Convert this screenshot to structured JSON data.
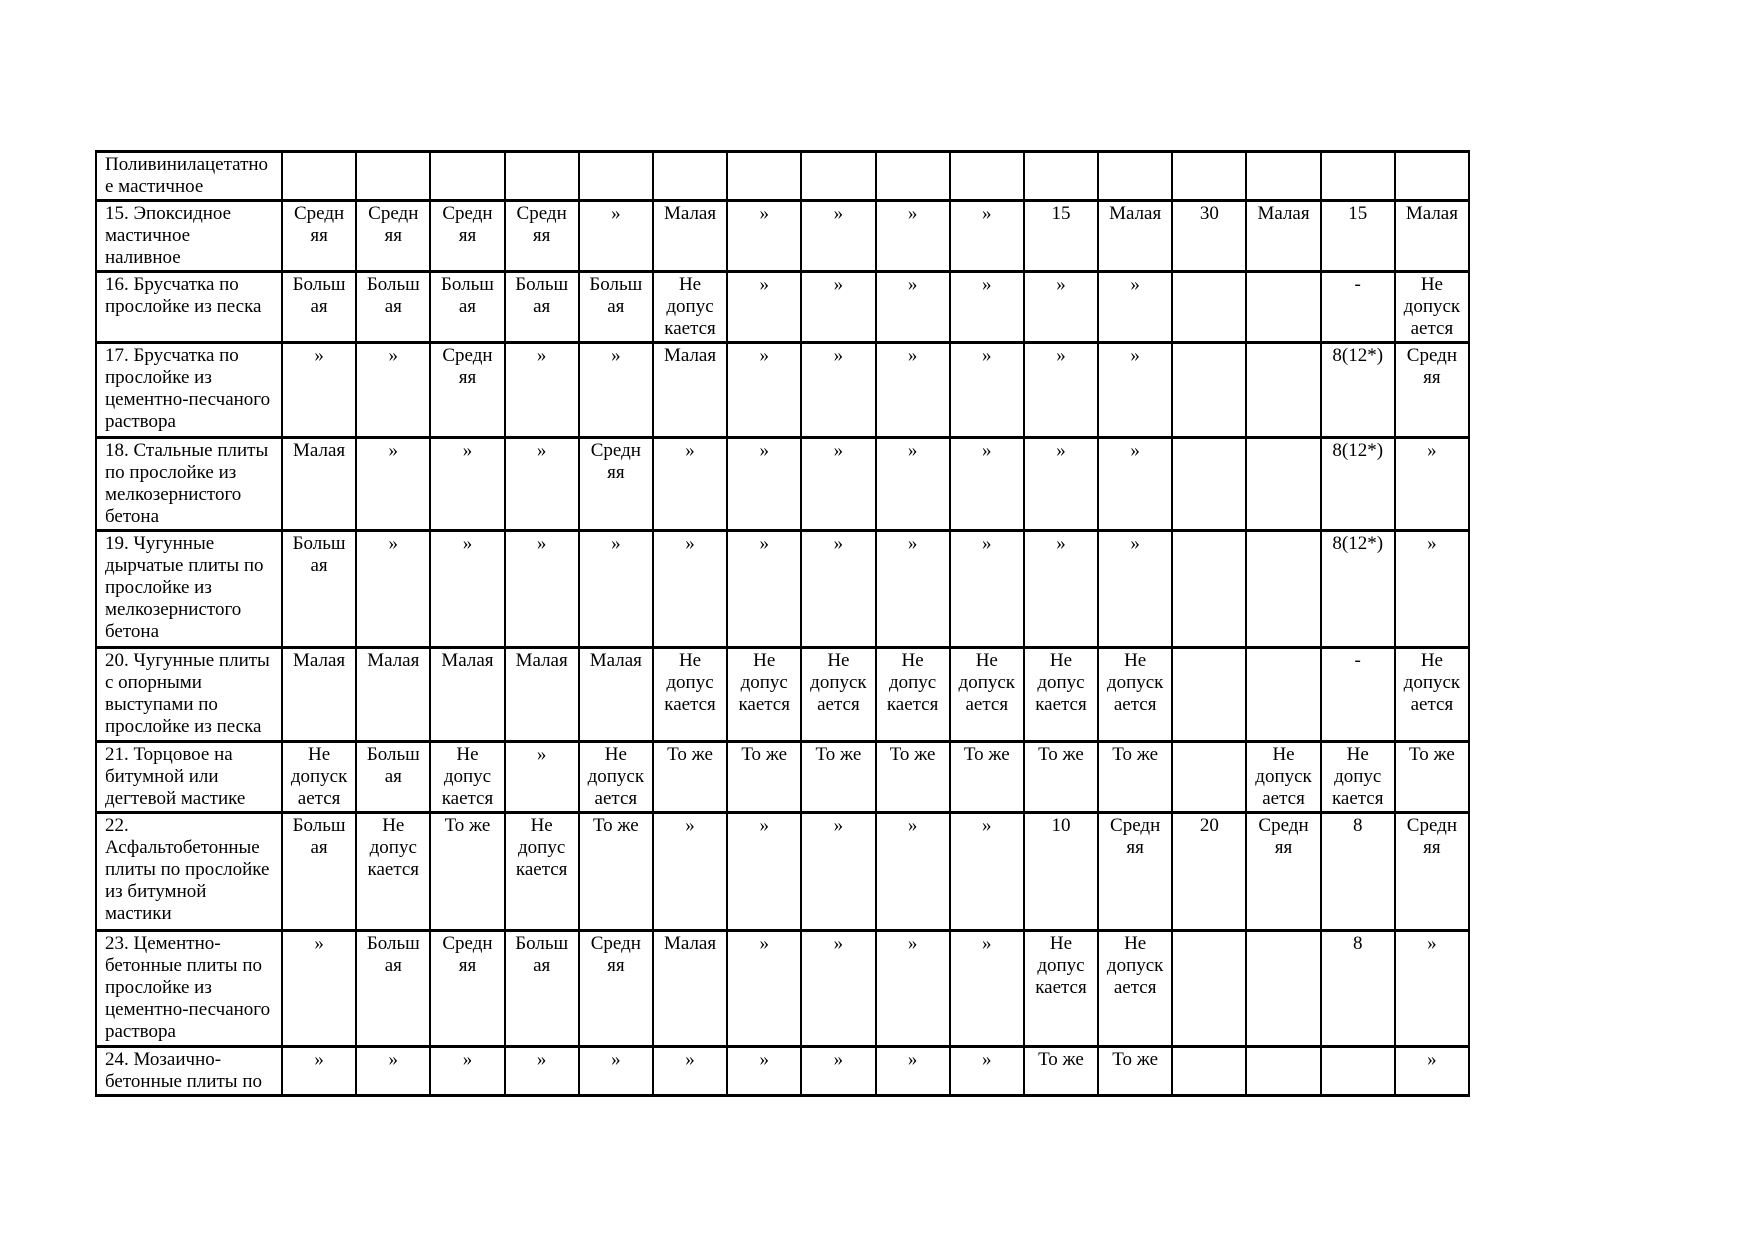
{
  "table": {
    "rows": [
      {
        "label": "Поливинилацетатно\nе мастичное",
        "cells": [
          "",
          "",
          "",
          "",
          "",
          "",
          "",
          "",
          "",
          "",
          "",
          "",
          "",
          "",
          "",
          ""
        ]
      },
      {
        "label": "15. Эпоксидное\nмастичное\nналивное",
        "cells": [
          "Средн\nяя",
          "Средн\nяя",
          "Средн\nяя",
          "Средн\nяя",
          "»",
          "Малая",
          "»",
          "»",
          "»",
          "»",
          "15",
          "Малая",
          "30",
          "Малая",
          "15",
          "Малая"
        ]
      },
      {
        "label": "16. Брусчатка по\nпрослойке из песка",
        "cells": [
          "Больш\nая",
          "Больш\nая",
          "Больш\nая",
          "Больш\nая",
          "Больш\nая",
          "Не\nдопус\nкается",
          "»",
          "»",
          "»",
          "»",
          "»",
          "»",
          "",
          "",
          "-",
          "Не\nдопуск\nается"
        ]
      },
      {
        "label": "17. Брусчатка по\nпрослойке из\nцементно-песчаного\nраствора",
        "cells": [
          "»",
          "»",
          "Средн\nяя",
          "»",
          "»",
          "Малая",
          "»",
          "»",
          "»",
          "»",
          "»",
          "»",
          "",
          "",
          "8(12*)",
          "Средн\nяя"
        ]
      },
      {
        "label": "18. Стальные плиты\nпо прослойке из\nмелкозернистого\nбетона",
        "cells": [
          "Малая",
          "»",
          "»",
          "»",
          "Средн\nяя",
          "»",
          "»",
          "»",
          "»",
          "»",
          "»",
          "»",
          "",
          "",
          "8(12*)",
          "»"
        ]
      },
      {
        "label": "19. Чугунные\nдырчатые плиты по\nпрослойке из\nмелкозернистого\nбетона",
        "cells": [
          "Больш\nая",
          "»",
          "»",
          "»",
          "»",
          "»",
          "»",
          "»",
          "»",
          "»",
          "»",
          "»",
          "",
          "",
          "8(12*)",
          "»"
        ]
      },
      {
        "label": "20. Чугунные плиты\nс опорными\nвыступами по\nпрослойке из песка",
        "cells": [
          "Малая",
          "Малая",
          "Малая",
          "Малая",
          "Малая",
          "Не\nдопус\nкается",
          "Не\nдопус\nкается",
          "Не\nдопуск\nается",
          "Не\nдопус\nкается",
          "Не\nдопуск\nается",
          "Не\nдопус\nкается",
          "Не\nдопуск\nается",
          "",
          "",
          "-",
          "Не\nдопуск\nается"
        ]
      },
      {
        "label": "21. Торцовое на\nбитумной или\nдегтевой мастике",
        "cells": [
          "Не\nдопуск\nается",
          "Больш\nая",
          "Не\nдопус\nкается",
          "»",
          "Не\nдопуск\nается",
          "То же",
          "То же",
          "То же",
          "То же",
          "То же",
          "То же",
          "То же",
          "",
          "Не\nдопуск\nается",
          "Не\nдопус\nкается",
          "То же"
        ]
      },
      {
        "label": "22.\nАсфальтобетонные\nплиты по прослойке\nиз битумной\nмастики",
        "cells": [
          "Больш\nая",
          "Не\nдопус\nкается",
          "То же",
          "Не\nдопус\nкается",
          "То же",
          "»",
          "»",
          "»",
          "»",
          "»",
          "10",
          "Средн\nяя",
          "20",
          "Средн\nяя",
          "8",
          "Средн\nяя"
        ]
      },
      {
        "label": "23. Цементно-\nбетонные плиты по\nпрослойке из\nцементно-песчаного\nраствора",
        "cells": [
          "»",
          "Больш\nая",
          "Средн\nяя",
          "Больш\nая",
          "Средн\nяя",
          "Малая",
          "»",
          "»",
          "»",
          "»",
          "Не\nдопус\nкается",
          "Не\nдопуск\nается",
          "",
          "",
          "8",
          "»"
        ]
      },
      {
        "label": "24. Мозаично-\nбетонные плиты по",
        "cells": [
          "»",
          "»",
          "»",
          "»",
          "»",
          "»",
          "»",
          "»",
          "»",
          "»",
          "То же",
          "То же",
          "",
          "",
          "",
          "»"
        ]
      }
    ]
  }
}
